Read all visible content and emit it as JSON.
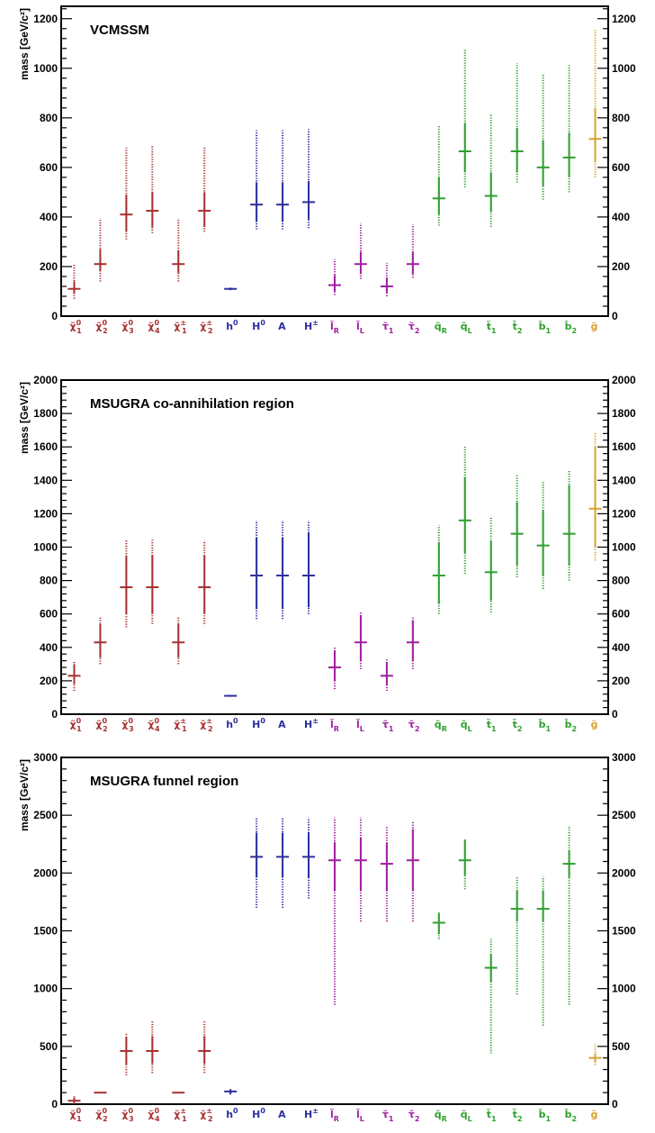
{
  "colors": {
    "neutralino": "#a83232",
    "higgs": "#2b2f9c",
    "slepton": "#a020a0",
    "squark": "#2ea02e",
    "gluino": "#d9a030",
    "axis": "#000000"
  },
  "categories": [
    {
      "key": "chi10",
      "sym": "χ̃",
      "sup": "0",
      "sub": "1",
      "group": "neutralino"
    },
    {
      "key": "chi20",
      "sym": "χ̃",
      "sup": "0",
      "sub": "2",
      "group": "neutralino"
    },
    {
      "key": "chi30",
      "sym": "χ̃",
      "sup": "0",
      "sub": "3",
      "group": "neutralino"
    },
    {
      "key": "chi40",
      "sym": "χ̃",
      "sup": "0",
      "sub": "4",
      "group": "neutralino"
    },
    {
      "key": "chi1pm",
      "sym": "χ̃",
      "sup": "±",
      "sub": "1",
      "group": "neutralino"
    },
    {
      "key": "chi2pm",
      "sym": "χ̃",
      "sup": "±",
      "sub": "2",
      "group": "neutralino"
    },
    {
      "key": "h0",
      "sym": "h",
      "sup": "0",
      "sub": "",
      "group": "higgs"
    },
    {
      "key": "H0",
      "sym": "H",
      "sup": "0",
      "sub": "",
      "group": "higgs"
    },
    {
      "key": "A",
      "sym": "A",
      "sup": "",
      "sub": "",
      "group": "higgs"
    },
    {
      "key": "Hpm",
      "sym": "H",
      "sup": "±",
      "sub": "",
      "group": "higgs"
    },
    {
      "key": "lR",
      "sym": "l̃",
      "sup": "",
      "sub": "R",
      "group": "slepton"
    },
    {
      "key": "lL",
      "sym": "l̃",
      "sup": "",
      "sub": "L",
      "group": "slepton"
    },
    {
      "key": "tau1",
      "sym": "τ̃",
      "sup": "",
      "sub": "1",
      "group": "slepton"
    },
    {
      "key": "tau2",
      "sym": "τ̃",
      "sup": "",
      "sub": "2",
      "group": "slepton"
    },
    {
      "key": "qR",
      "sym": "q̃",
      "sup": "",
      "sub": "R",
      "group": "squark"
    },
    {
      "key": "qL",
      "sym": "q̃",
      "sup": "",
      "sub": "L",
      "group": "squark"
    },
    {
      "key": "t1",
      "sym": "t̃",
      "sup": "",
      "sub": "1",
      "group": "squark"
    },
    {
      "key": "t2",
      "sym": "t̃",
      "sup": "",
      "sub": "2",
      "group": "squark"
    },
    {
      "key": "b1",
      "sym": "b̃",
      "sup": "",
      "sub": "1",
      "group": "squark"
    },
    {
      "key": "b2",
      "sym": "b̃",
      "sup": "",
      "sub": "2",
      "group": "squark"
    },
    {
      "key": "gluino",
      "sym": "g̃",
      "sup": "",
      "sub": "",
      "group": "gluino"
    }
  ],
  "ylabel": "mass [GeV/c²]",
  "chart_data": [
    {
      "type": "scatter",
      "title": "VCMSSM",
      "ylabel": "mass [GeV/c²]",
      "ylim": [
        0,
        1250
      ],
      "yticks": [
        0,
        200,
        400,
        600,
        800,
        1000,
        1200
      ],
      "points": [
        {
          "y": 110,
          "err": [
            90,
            140
          ],
          "range": [
            70,
            210
          ]
        },
        {
          "y": 210,
          "err": [
            180,
            270
          ],
          "range": [
            140,
            395
          ]
        },
        {
          "y": 410,
          "err": [
            340,
            490
          ],
          "range": [
            310,
            680
          ]
        },
        {
          "y": 425,
          "err": [
            360,
            500
          ],
          "range": [
            335,
            690
          ]
        },
        {
          "y": 210,
          "err": [
            175,
            265
          ],
          "range": [
            140,
            395
          ]
        },
        {
          "y": 425,
          "err": [
            360,
            500
          ],
          "range": [
            340,
            680
          ]
        },
        {
          "y": 110,
          "err": [
            105,
            115
          ],
          "range": [
            105,
            115
          ]
        },
        {
          "y": 450,
          "err": [
            380,
            540
          ],
          "range": [
            350,
            750
          ]
        },
        {
          "y": 450,
          "err": [
            380,
            540
          ],
          "range": [
            350,
            750
          ]
        },
        {
          "y": 460,
          "err": [
            390,
            545
          ],
          "range": [
            355,
            755
          ]
        },
        {
          "y": 125,
          "err": [
            100,
            165
          ],
          "range": [
            85,
            230
          ]
        },
        {
          "y": 210,
          "err": [
            170,
            260
          ],
          "range": [
            150,
            375
          ]
        },
        {
          "y": 120,
          "err": [
            95,
            155
          ],
          "range": [
            80,
            215
          ]
        },
        {
          "y": 210,
          "err": [
            170,
            260
          ],
          "range": [
            155,
            370
          ]
        },
        {
          "y": 475,
          "err": [
            410,
            560
          ],
          "range": [
            365,
            770
          ]
        },
        {
          "y": 665,
          "err": [
            580,
            780
          ],
          "range": [
            520,
            1075
          ]
        },
        {
          "y": 485,
          "err": [
            420,
            580
          ],
          "range": [
            360,
            815
          ]
        },
        {
          "y": 665,
          "err": [
            580,
            760
          ],
          "range": [
            540,
            1020
          ]
        },
        {
          "y": 600,
          "err": [
            525,
            710
          ],
          "range": [
            470,
            975
          ]
        },
        {
          "y": 640,
          "err": [
            560,
            740
          ],
          "range": [
            500,
            1015
          ]
        },
        {
          "y": 715,
          "err": [
            620,
            840
          ],
          "range": [
            560,
            1155
          ]
        }
      ]
    },
    {
      "type": "scatter",
      "title": "MSUGRA co-annihilation region",
      "ylabel": "mass [GeV/c²]",
      "ylim": [
        0,
        2000
      ],
      "yticks": [
        0,
        200,
        400,
        600,
        800,
        1000,
        1200,
        1400,
        1600,
        1800,
        2000
      ],
      "points": [
        {
          "y": 230,
          "err": [
            180,
            300
          ],
          "range": [
            140,
            320
          ]
        },
        {
          "y": 430,
          "err": [
            340,
            540
          ],
          "range": [
            300,
            580
          ]
        },
        {
          "y": 760,
          "err": [
            600,
            950
          ],
          "range": [
            520,
            1040
          ]
        },
        {
          "y": 760,
          "err": [
            600,
            950
          ],
          "range": [
            540,
            1050
          ]
        },
        {
          "y": 430,
          "err": [
            340,
            540
          ],
          "range": [
            300,
            580
          ]
        },
        {
          "y": 760,
          "err": [
            600,
            950
          ],
          "range": [
            540,
            1040
          ]
        },
        {
          "y": 110,
          "err": [
            105,
            115
          ],
          "range": [
            105,
            115
          ]
        },
        {
          "y": 830,
          "err": [
            630,
            1060
          ],
          "range": [
            570,
            1160
          ]
        },
        {
          "y": 830,
          "err": [
            630,
            1060
          ],
          "range": [
            570,
            1160
          ]
        },
        {
          "y": 830,
          "err": [
            640,
            1090
          ],
          "range": [
            600,
            1160
          ]
        },
        {
          "y": 280,
          "err": [
            200,
            380
          ],
          "range": [
            150,
            400
          ]
        },
        {
          "y": 430,
          "err": [
            320,
            590
          ],
          "range": [
            270,
            610
          ]
        },
        {
          "y": 230,
          "err": [
            170,
            310
          ],
          "range": [
            140,
            330
          ]
        },
        {
          "y": 430,
          "err": [
            320,
            560
          ],
          "range": [
            270,
            580
          ]
        },
        {
          "y": 830,
          "err": [
            660,
            1030
          ],
          "range": [
            600,
            1130
          ]
        },
        {
          "y": 1160,
          "err": [
            960,
            1420
          ],
          "range": [
            840,
            1610
          ]
        },
        {
          "y": 850,
          "err": [
            680,
            1040
          ],
          "range": [
            610,
            1180
          ]
        },
        {
          "y": 1080,
          "err": [
            890,
            1270
          ],
          "range": [
            820,
            1430
          ]
        },
        {
          "y": 1010,
          "err": [
            830,
            1220
          ],
          "range": [
            750,
            1390
          ]
        },
        {
          "y": 1080,
          "err": [
            890,
            1370
          ],
          "range": [
            800,
            1460
          ]
        },
        {
          "y": 1230,
          "err": [
            1000,
            1600
          ],
          "range": [
            920,
            1690
          ]
        }
      ]
    },
    {
      "type": "scatter",
      "title": "MSUGRA funnel region",
      "ylabel": "mass [GeV/c²]",
      "ylim": [
        0,
        3000
      ],
      "yticks": [
        0,
        500,
        1000,
        1500,
        2000,
        2500,
        3000
      ],
      "points": [
        {
          "y": 30,
          "err": [
            0,
            60
          ],
          "range": [
            0,
            70
          ]
        },
        {
          "y": 100,
          "err": [
            95,
            105
          ],
          "range": [
            95,
            105
          ]
        },
        {
          "y": 460,
          "err": [
            340,
            580
          ],
          "range": [
            250,
            610
          ]
        },
        {
          "y": 460,
          "err": [
            350,
            590
          ],
          "range": [
            270,
            720
          ]
        },
        {
          "y": 100,
          "err": [
            95,
            105
          ],
          "range": [
            95,
            105
          ]
        },
        {
          "y": 460,
          "err": [
            350,
            590
          ],
          "range": [
            270,
            720
          ]
        },
        {
          "y": 110,
          "err": [
            85,
            130
          ],
          "range": [
            85,
            130
          ]
        },
        {
          "y": 2140,
          "err": [
            1960,
            2350
          ],
          "range": [
            1700,
            2480
          ]
        },
        {
          "y": 2140,
          "err": [
            1960,
            2350
          ],
          "range": [
            1700,
            2480
          ]
        },
        {
          "y": 2140,
          "err": [
            1960,
            2350
          ],
          "range": [
            1780,
            2480
          ]
        },
        {
          "y": 2110,
          "err": [
            1850,
            2270
          ],
          "range": [
            860,
            2480
          ]
        },
        {
          "y": 2110,
          "err": [
            1850,
            2310
          ],
          "range": [
            1580,
            2480
          ]
        },
        {
          "y": 2080,
          "err": [
            1850,
            2260
          ],
          "range": [
            1580,
            2410
          ]
        },
        {
          "y": 2110,
          "err": [
            1850,
            2380
          ],
          "range": [
            1580,
            2450
          ]
        },
        {
          "y": 1570,
          "err": [
            1470,
            1650
          ],
          "range": [
            1430,
            1670
          ]
        },
        {
          "y": 2110,
          "err": [
            1980,
            2290
          ],
          "range": [
            1860,
            2290
          ]
        },
        {
          "y": 1180,
          "err": [
            1060,
            1300
          ],
          "range": [
            440,
            1430
          ]
        },
        {
          "y": 1690,
          "err": [
            1580,
            1850
          ],
          "range": [
            950,
            1970
          ]
        },
        {
          "y": 1690,
          "err": [
            1580,
            1850
          ],
          "range": [
            680,
            1970
          ]
        },
        {
          "y": 2080,
          "err": [
            1960,
            2200
          ],
          "range": [
            860,
            2410
          ]
        },
        {
          "y": 400,
          "err": [
            360,
            440
          ],
          "range": [
            340,
            520
          ]
        }
      ]
    }
  ]
}
